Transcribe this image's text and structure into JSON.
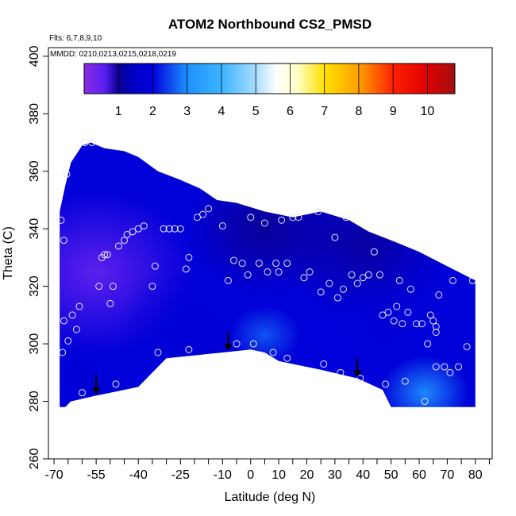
{
  "chart_data": {
    "type": "heatmap",
    "title": "ATOM2 Northbound CS2_PMSD",
    "annotations": {
      "flights": "Flts: 6,7,8,9,10",
      "dates": "MMDD: 0210,0213,0215,0218,0219"
    },
    "xlabel": "Latitude (deg N)",
    "ylabel": "Theta (C)",
    "xlim": [
      -72,
      86
    ],
    "ylim": [
      260,
      403
    ],
    "x_ticks": [
      -70,
      -55,
      -40,
      -25,
      -10,
      0,
      10,
      20,
      30,
      40,
      50,
      60,
      70,
      80
    ],
    "x_minor_ticks": [
      -65,
      -60,
      -50,
      -45,
      -35,
      -30,
      -20,
      -15,
      -5,
      5,
      15,
      25,
      35,
      45,
      55,
      65,
      75,
      85
    ],
    "y_ticks": [
      260,
      280,
      300,
      320,
      340,
      360,
      380,
      400
    ],
    "colorbar": {
      "range": [
        0,
        10.8
      ],
      "ticks": [
        1,
        2,
        3,
        4,
        5,
        6,
        7,
        8,
        9,
        10
      ],
      "stops": [
        {
          "v": 0.0,
          "c": "#8a2be2"
        },
        {
          "v": 0.6,
          "c": "#5a1ff0"
        },
        {
          "v": 1.0,
          "c": "#0a0094"
        },
        {
          "v": 1.5,
          "c": "#0000c8"
        },
        {
          "v": 2.0,
          "c": "#0000dd"
        },
        {
          "v": 3.0,
          "c": "#1e90ff"
        },
        {
          "v": 4.0,
          "c": "#3cb4ff"
        },
        {
          "v": 5.0,
          "c": "#a8dcff"
        },
        {
          "v": 5.6,
          "c": "#ffffff"
        },
        {
          "v": 6.2,
          "c": "#ffffc8"
        },
        {
          "v": 7.0,
          "c": "#ffe000"
        },
        {
          "v": 8.0,
          "c": "#ffa000"
        },
        {
          "v": 9.0,
          "c": "#ff2000"
        },
        {
          "v": 10.0,
          "c": "#e00000"
        },
        {
          "v": 10.8,
          "c": "#a01010"
        }
      ]
    },
    "top_boundary": [
      [
        -68,
        346
      ],
      [
        -66,
        355
      ],
      [
        -64,
        363
      ],
      [
        -60,
        369
      ],
      [
        -57,
        370
      ],
      [
        -52,
        368
      ],
      [
        -45,
        367
      ],
      [
        -40,
        365
      ],
      [
        -33,
        360
      ],
      [
        -25,
        357
      ],
      [
        -18,
        354
      ],
      [
        -12,
        350
      ],
      [
        -5,
        349
      ],
      [
        5,
        346
      ],
      [
        15,
        344
      ],
      [
        25,
        346
      ],
      [
        35,
        343
      ],
      [
        42,
        339
      ],
      [
        50,
        336
      ],
      [
        60,
        332
      ],
      [
        68,
        328
      ],
      [
        74,
        325
      ],
      [
        80,
        322
      ]
    ],
    "bottom_boundary": [
      [
        80,
        278
      ],
      [
        50,
        278
      ],
      [
        47,
        284
      ],
      [
        38,
        288
      ],
      [
        25,
        291
      ],
      [
        15,
        293
      ],
      [
        10,
        294
      ],
      [
        5,
        297
      ],
      [
        0,
        298
      ],
      [
        -10,
        297
      ],
      [
        -30,
        295
      ],
      [
        -40,
        285
      ],
      [
        -50,
        283
      ],
      [
        -55,
        282
      ],
      [
        -64,
        280
      ],
      [
        -66,
        278
      ],
      [
        -68,
        278
      ]
    ],
    "field_patches": [
      {
        "x": -55,
        "y": 325,
        "v": 0.5,
        "r": 22
      },
      {
        "x": 5,
        "y": 340,
        "v": 1.0,
        "r": 18
      },
      {
        "x": 40,
        "y": 335,
        "v": 1.1,
        "r": 20
      },
      {
        "x": -20,
        "y": 305,
        "v": 1.8,
        "r": 18
      },
      {
        "x": 5,
        "y": 303,
        "v": 2.6,
        "r": 8
      },
      {
        "x": 45,
        "y": 305,
        "v": 1.8,
        "r": 14
      },
      {
        "x": 62,
        "y": 283,
        "v": 3.0,
        "r": 10
      },
      {
        "x": 30,
        "y": 298,
        "v": 2.0,
        "r": 10
      },
      {
        "x": -60,
        "y": 290,
        "v": 1.8,
        "r": 10
      }
    ],
    "observations": [
      [
        -67.5,
        343
      ],
      [
        -66.5,
        336
      ],
      [
        -67,
        297
      ],
      [
        -66.5,
        308
      ],
      [
        -65,
        301
      ],
      [
        -63.5,
        310
      ],
      [
        -62,
        305
      ],
      [
        -61,
        313
      ],
      [
        -60,
        283
      ],
      [
        -59,
        370
      ],
      [
        -56.5,
        370
      ],
      [
        -65.5,
        359
      ],
      [
        -54,
        320
      ],
      [
        -53,
        330
      ],
      [
        -52,
        331
      ],
      [
        -51,
        331
      ],
      [
        -50,
        314
      ],
      [
        -49,
        320
      ],
      [
        -48,
        286
      ],
      [
        -47,
        334
      ],
      [
        -45,
        336
      ],
      [
        -44,
        338
      ],
      [
        -42,
        339
      ],
      [
        -40,
        340
      ],
      [
        -38,
        341
      ],
      [
        -35,
        320
      ],
      [
        -34,
        327
      ],
      [
        -33,
        297
      ],
      [
        -31,
        340
      ],
      [
        -29,
        340
      ],
      [
        -27,
        340
      ],
      [
        -25,
        340
      ],
      [
        -23,
        326
      ],
      [
        -22,
        330
      ],
      [
        -22,
        298
      ],
      [
        -19,
        344
      ],
      [
        -17,
        345
      ],
      [
        -15,
        347
      ],
      [
        -10,
        341
      ],
      [
        -8,
        322
      ],
      [
        -6,
        329
      ],
      [
        -5,
        300
      ],
      [
        -3,
        328
      ],
      [
        -1,
        324
      ],
      [
        0,
        344
      ],
      [
        1,
        300
      ],
      [
        3,
        328
      ],
      [
        5,
        342
      ],
      [
        6,
        325
      ],
      [
        8,
        297
      ],
      [
        9,
        328
      ],
      [
        10,
        325
      ],
      [
        11,
        343
      ],
      [
        13,
        295
      ],
      [
        13,
        328
      ],
      [
        15,
        344
      ],
      [
        17,
        344
      ],
      [
        19,
        323
      ],
      [
        21,
        325
      ],
      [
        24,
        346
      ],
      [
        25,
        318
      ],
      [
        26,
        293
      ],
      [
        28,
        321
      ],
      [
        30,
        337
      ],
      [
        31,
        316
      ],
      [
        32,
        290
      ],
      [
        33,
        319
      ],
      [
        34,
        344
      ],
      [
        36,
        324
      ],
      [
        38,
        321
      ],
      [
        39,
        288
      ],
      [
        40,
        323
      ],
      [
        42,
        324
      ],
      [
        44,
        332
      ],
      [
        46,
        324
      ],
      [
        47,
        310
      ],
      [
        48,
        286
      ],
      [
        49,
        311
      ],
      [
        51,
        308
      ],
      [
        52,
        313
      ],
      [
        53,
        322
      ],
      [
        54,
        307
      ],
      [
        55,
        287
      ],
      [
        56,
        311
      ],
      [
        57,
        319
      ],
      [
        59,
        307
      ],
      [
        61,
        307
      ],
      [
        62,
        280
      ],
      [
        63,
        300
      ],
      [
        64,
        310
      ],
      [
        65,
        308
      ],
      [
        66,
        306
      ],
      [
        66,
        304
      ],
      [
        66,
        292
      ],
      [
        67,
        317
      ],
      [
        69,
        292
      ],
      [
        71,
        290
      ],
      [
        72,
        322
      ],
      [
        74,
        292
      ],
      [
        77,
        299
      ],
      [
        79,
        322
      ]
    ],
    "arrows_at_latitude": [
      -55,
      -8,
      38
    ]
  }
}
